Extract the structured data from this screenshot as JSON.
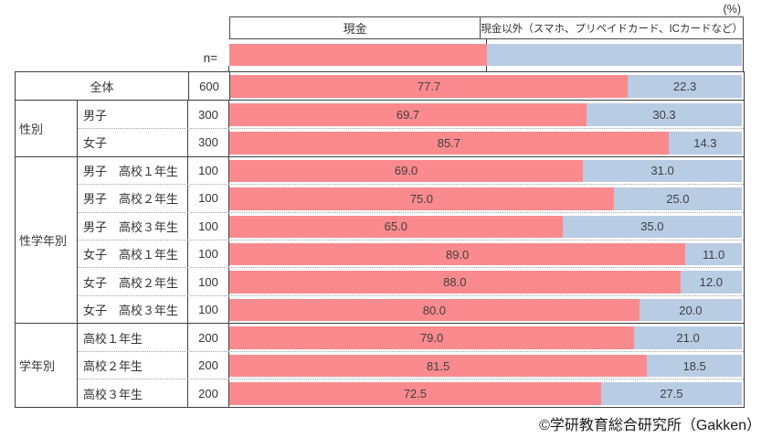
{
  "unit_label": "(%)",
  "n_header": "n=",
  "footer": {
    "credit": "©学研教育総合研究所（Gakken）"
  },
  "colors": {
    "cash_bar": "#fb8a8e",
    "noncash_bar": "#b8cce4",
    "table_border": "#3f3f3f",
    "header_border": "#4d4d4d",
    "value_text": "#404040",
    "dotted_separator": "#a0a0a0"
  },
  "chart_data": {
    "type": "bar",
    "orientation": "horizontal",
    "stacked": true,
    "unit": "%",
    "xlim": [
      0,
      100
    ],
    "value_decimals": 1,
    "legend_position": "top",
    "series": [
      {
        "name": "現金",
        "color": "#fb8a8e"
      },
      {
        "name": "現金以外（スマホ、プリペイドカード、ICカードなど）",
        "color": "#b8cce4"
      }
    ],
    "groups": [
      {
        "label": "",
        "span_full_label": true,
        "rows": [
          {
            "label": "全体",
            "n": "600",
            "values": [
              77.7,
              22.3
            ]
          }
        ]
      },
      {
        "label": "性別",
        "span_full_label": false,
        "rows": [
          {
            "label": "男子",
            "n": "300",
            "values": [
              69.7,
              30.3
            ]
          },
          {
            "label": "女子",
            "n": "300",
            "values": [
              85.7,
              14.3
            ]
          }
        ]
      },
      {
        "label": "性学年別",
        "span_full_label": false,
        "rows": [
          {
            "label": "男子　高校１年生",
            "n": "100",
            "values": [
              69.0,
              31.0
            ]
          },
          {
            "label": "男子　高校２年生",
            "n": "100",
            "values": [
              75.0,
              25.0
            ]
          },
          {
            "label": "男子　高校３年生",
            "n": "100",
            "values": [
              65.0,
              35.0
            ]
          },
          {
            "label": "女子　高校１年生",
            "n": "100",
            "values": [
              89.0,
              11.0
            ]
          },
          {
            "label": "女子　高校２年生",
            "n": "100",
            "values": [
              88.0,
              12.0
            ]
          },
          {
            "label": "女子　高校３年生",
            "n": "100",
            "values": [
              80.0,
              20.0
            ]
          }
        ]
      },
      {
        "label": "学年別",
        "span_full_label": false,
        "rows": [
          {
            "label": "高校１年生",
            "n": "200",
            "values": [
              79.0,
              21.0
            ]
          },
          {
            "label": "高校２年生",
            "n": "200",
            "values": [
              81.5,
              18.5
            ]
          },
          {
            "label": "高校３年生",
            "n": "200",
            "values": [
              72.5,
              27.5
            ]
          }
        ]
      }
    ]
  }
}
